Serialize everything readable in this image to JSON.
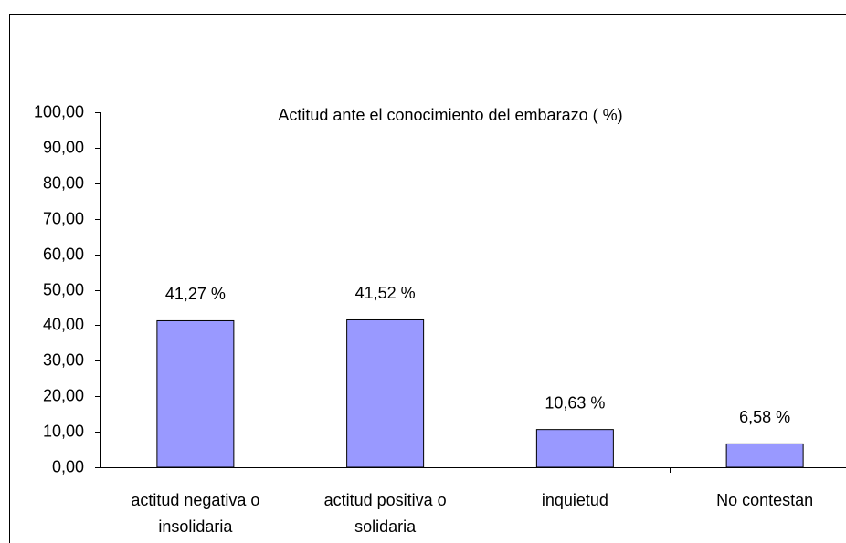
{
  "chart_data": {
    "type": "bar",
    "title": "Actitud ante el conocimiento del embarazo ( %)",
    "categories": [
      "actitud negativa  o insolidaria",
      "actitud positiva o solidaria",
      "inquietud",
      "No contestan"
    ],
    "values": [
      41.27,
      41.52,
      10.63,
      6.58
    ],
    "value_labels": [
      "41,27 %",
      "41,52 %",
      "10,63 %",
      "6,58 %"
    ],
    "color": "#9999ff",
    "ylim": [
      0,
      100
    ],
    "yticks": [
      {
        "value": 0,
        "label": "0,00"
      },
      {
        "value": 10,
        "label": "10,00"
      },
      {
        "value": 20,
        "label": "20,00"
      },
      {
        "value": 30,
        "label": "30,00"
      },
      {
        "value": 40,
        "label": "40,00"
      },
      {
        "value": 50,
        "label": "50,00"
      },
      {
        "value": 60,
        "label": "60,00"
      },
      {
        "value": 70,
        "label": "70,00"
      },
      {
        "value": 80,
        "label": "80,00"
      },
      {
        "value": 90,
        "label": "90,00"
      },
      {
        "value": 100,
        "label": "100,00"
      }
    ],
    "grid": false
  }
}
